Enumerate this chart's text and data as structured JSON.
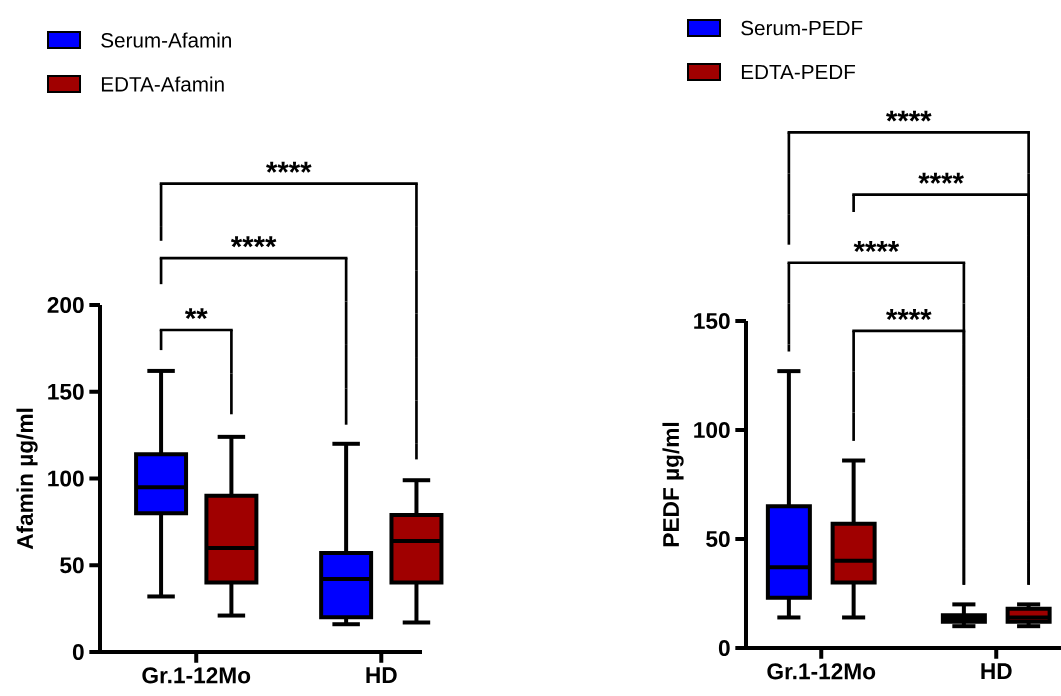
{
  "chart_data": [
    {
      "type": "box",
      "categories": [
        "Gr.1-12Mo",
        "HD"
      ],
      "ylabel": "Afamin µg/ml",
      "ylim": [
        0,
        200
      ],
      "yticks": [
        0,
        50,
        100,
        150,
        200
      ],
      "legend": "top left",
      "annotations": [
        "****",
        "****",
        "**"
      ],
      "series": [
        {
          "name": "Serum-Afamin",
          "color": "#0000ff",
          "boxes": [
            {
              "low": 32,
              "q1": 80,
              "median": 95,
              "q3": 114,
              "high": 162
            },
            {
              "low": 16,
              "q1": 20,
              "median": 42,
              "q3": 57,
              "high": 120
            }
          ]
        },
        {
          "name": "EDTA-Afamin",
          "color": "#a00000",
          "boxes": [
            {
              "low": 21,
              "q1": 40,
              "median": 60,
              "q3": 90,
              "high": 124
            },
            {
              "low": 17,
              "q1": 40,
              "median": 64,
              "q3": 79,
              "high": 99
            }
          ]
        }
      ]
    },
    {
      "type": "box",
      "categories": [
        "Gr.1-12Mo",
        "HD"
      ],
      "ylabel": "PEDF µg/ml",
      "ylim": [
        0,
        150
      ],
      "yticks": [
        0,
        50,
        100,
        150
      ],
      "legend": "top left",
      "annotations": [
        "****",
        "****",
        "****",
        "****"
      ],
      "series": [
        {
          "name": "Serum-PEDF",
          "color": "#0000ff",
          "boxes": [
            {
              "low": 14,
              "q1": 23,
              "median": 37,
              "q3": 65,
              "high": 127
            },
            {
              "low": 10,
              "q1": 12,
              "median": 13.5,
              "q3": 15,
              "high": 20
            }
          ]
        },
        {
          "name": "EDTA-PEDF",
          "color": "#a00000",
          "boxes": [
            {
              "low": 14,
              "q1": 30,
              "median": 40,
              "q3": 57,
              "high": 86
            },
            {
              "low": 10,
              "q1": 12,
              "median": 14,
              "q3": 18,
              "high": 20
            }
          ]
        }
      ]
    }
  ]
}
